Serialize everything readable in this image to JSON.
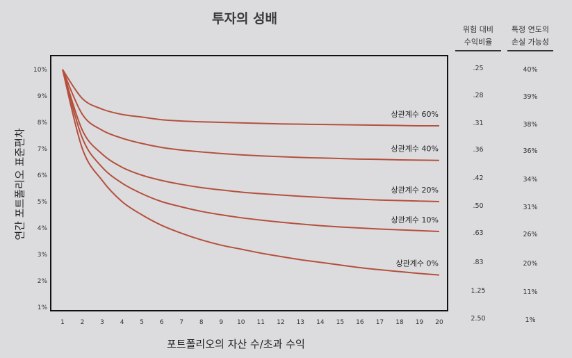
{
  "chart_data": {
    "type": "line",
    "title": "투자의 성배",
    "xlabel": "포트폴리오의 자산 수/초과 수익",
    "ylabel": "연간 포트폴리오 표준편차",
    "x": [
      1,
      2,
      3,
      4,
      5,
      6,
      7,
      8,
      9,
      10,
      11,
      12,
      13,
      14,
      15,
      16,
      17,
      18,
      19,
      20
    ],
    "x_ticks": [
      "1",
      "2",
      "3",
      "4",
      "5",
      "6",
      "7",
      "8",
      "9",
      "10",
      "11",
      "12",
      "13",
      "14",
      "15",
      "16",
      "17",
      "18",
      "19",
      "20"
    ],
    "y_ticks": [
      "1%",
      "2%",
      "3%",
      "4%",
      "5%",
      "6%",
      "7%",
      "8%",
      "9%",
      "10%"
    ],
    "xlim": [
      0,
      20.5
    ],
    "ylim": [
      1,
      10
    ],
    "grid": false,
    "series": [
      {
        "name": "상관계수 60%",
        "values": [
          10.0,
          8.9,
          8.5,
          8.3,
          8.2,
          8.1,
          8.05,
          8.02,
          8.0,
          7.98,
          7.96,
          7.94,
          7.93,
          7.92,
          7.91,
          7.9,
          7.89,
          7.88,
          7.87,
          7.87
        ]
      },
      {
        "name": "상관계수 40%",
        "values": [
          10.0,
          8.3,
          7.7,
          7.4,
          7.2,
          7.05,
          6.95,
          6.88,
          6.82,
          6.77,
          6.73,
          6.7,
          6.67,
          6.65,
          6.63,
          6.61,
          6.6,
          6.58,
          6.57,
          6.56
        ]
      },
      {
        "name": "상관계수 20%",
        "values": [
          10.0,
          7.7,
          6.8,
          6.3,
          6.0,
          5.8,
          5.65,
          5.53,
          5.44,
          5.36,
          5.3,
          5.25,
          5.2,
          5.16,
          5.12,
          5.09,
          5.06,
          5.04,
          5.02,
          5.0
        ]
      },
      {
        "name": "상관계수 10%",
        "values": [
          10.0,
          7.4,
          6.3,
          5.7,
          5.3,
          5.0,
          4.8,
          4.63,
          4.5,
          4.39,
          4.3,
          4.22,
          4.15,
          4.09,
          4.04,
          4.0,
          3.96,
          3.93,
          3.9,
          3.87
        ]
      },
      {
        "name": "상관계수 0%",
        "values": [
          10.0,
          7.0,
          5.8,
          5.0,
          4.5,
          4.1,
          3.8,
          3.55,
          3.35,
          3.2,
          3.05,
          2.92,
          2.8,
          2.7,
          2.6,
          2.5,
          2.42,
          2.35,
          2.28,
          2.22
        ]
      }
    ]
  },
  "table": {
    "col1_header": [
      "위험 대비",
      "수익비율"
    ],
    "col2_header": [
      "특정 연도의",
      "손실 가능성"
    ],
    "rows": [
      {
        "ratio": ".25",
        "loss": "40%"
      },
      {
        "ratio": ".28",
        "loss": "39%"
      },
      {
        "ratio": ".31",
        "loss": "38%"
      },
      {
        "ratio": ".36",
        "loss": "36%"
      },
      {
        "ratio": ".42",
        "loss": "34%"
      },
      {
        "ratio": ".50",
        "loss": "31%"
      },
      {
        "ratio": ".63",
        "loss": "26%"
      },
      {
        "ratio": ".83",
        "loss": "20%"
      },
      {
        "ratio": "1.25",
        "loss": "11%"
      },
      {
        "ratio": "2.50",
        "loss": "1%"
      }
    ]
  },
  "colors": {
    "line": "#b5503d",
    "axis": "#111111",
    "text": "#2a2a2a"
  }
}
